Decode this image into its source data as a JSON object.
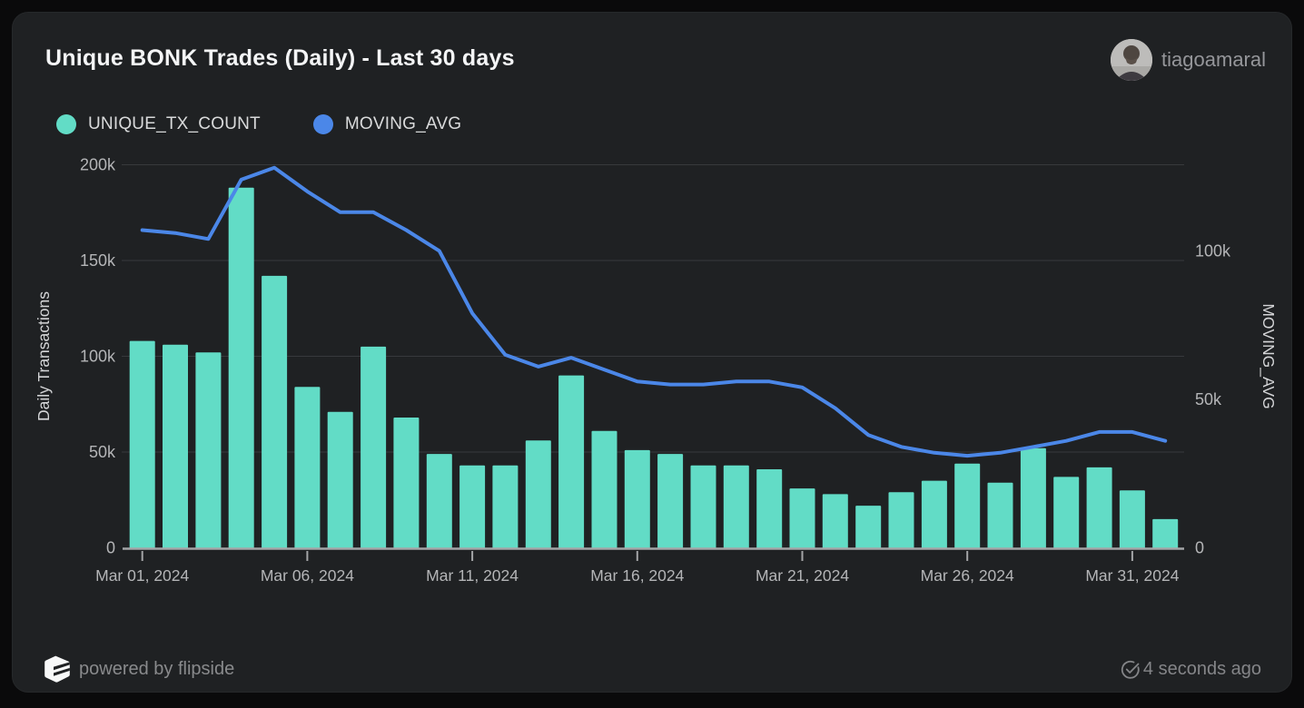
{
  "header": {
    "title": "Unique BONK Trades (Daily) - Last 30 days",
    "user": "tiagoamaral"
  },
  "legend": [
    {
      "label": "UNIQUE_TX_COUNT",
      "color": "#62dcc6"
    },
    {
      "label": "MOVING_AVG",
      "color": "#4b87e8"
    }
  ],
  "footer": {
    "powered_by": "powered by flipside",
    "updated": "4 seconds ago"
  },
  "colors": {
    "page_bg": "#0a0a0b",
    "card_bg": "#1f2123",
    "bar": "#62dcc6",
    "line": "#4b87e8",
    "grid": "#37393c",
    "axis": "#a4a5a7",
    "tick_text": "#b4b5b7",
    "axis_title_text": "#d4d5d7"
  },
  "chart_data": {
    "type": "bar",
    "title": "Unique BONK Trades (Daily) - Last 30 days",
    "x": [
      "Mar 01, 2024",
      "Mar 02, 2024",
      "Mar 03, 2024",
      "Mar 04, 2024",
      "Mar 05, 2024",
      "Mar 06, 2024",
      "Mar 07, 2024",
      "Mar 08, 2024",
      "Mar 09, 2024",
      "Mar 10, 2024",
      "Mar 11, 2024",
      "Mar 12, 2024",
      "Mar 13, 2024",
      "Mar 14, 2024",
      "Mar 15, 2024",
      "Mar 16, 2024",
      "Mar 17, 2024",
      "Mar 18, 2024",
      "Mar 19, 2024",
      "Mar 20, 2024",
      "Mar 21, 2024",
      "Mar 22, 2024",
      "Mar 23, 2024",
      "Mar 24, 2024",
      "Mar 25, 2024",
      "Mar 26, 2024",
      "Mar 27, 2024",
      "Mar 28, 2024",
      "Mar 29, 2024",
      "Mar 30, 2024",
      "Mar 31, 2024",
      "Apr 01, 2024"
    ],
    "series": [
      {
        "name": "UNIQUE_TX_COUNT",
        "type": "bar",
        "axis": "left",
        "color": "#62dcc6",
        "values": [
          108000,
          106000,
          102000,
          188000,
          142000,
          84000,
          71000,
          105000,
          68000,
          49000,
          43000,
          43000,
          56000,
          90000,
          61000,
          51000,
          49000,
          43000,
          43000,
          41000,
          31000,
          28000,
          22000,
          29000,
          35000,
          44000,
          34000,
          52000,
          37000,
          42000,
          30000,
          15000
        ]
      },
      {
        "name": "MOVING_AVG",
        "type": "line",
        "axis": "right",
        "color": "#4b87e8",
        "values": [
          107000,
          106000,
          104000,
          124000,
          128000,
          120000,
          113000,
          113000,
          107000,
          100000,
          79000,
          65000,
          61000,
          64000,
          60000,
          56000,
          55000,
          55000,
          56000,
          56000,
          54000,
          47000,
          38000,
          34000,
          32000,
          31000,
          32000,
          34000,
          36000,
          39000,
          39000,
          36000
        ]
      }
    ],
    "left_axis": {
      "label": "Daily Transactions",
      "ticks": [
        "0",
        "50k",
        "100k",
        "150k",
        "200k"
      ],
      "tick_values": [
        0,
        50000,
        100000,
        150000,
        200000
      ],
      "range": [
        0,
        200000
      ]
    },
    "right_axis": {
      "label": "MOVING_AVG",
      "ticks": [
        "0",
        "50k",
        "100k"
      ],
      "tick_values": [
        0,
        50000,
        100000
      ],
      "range": [
        0,
        129000
      ]
    },
    "x_ticks": [
      "Mar 01, 2024",
      "Mar 06, 2024",
      "Mar 11, 2024",
      "Mar 16, 2024",
      "Mar 21, 2024",
      "Mar 26, 2024",
      "Mar 31, 2024"
    ],
    "x_tick_days": [
      1,
      6,
      11,
      16,
      21,
      26,
      31
    ],
    "grid": "horizontal",
    "legend_position": "top-left"
  }
}
